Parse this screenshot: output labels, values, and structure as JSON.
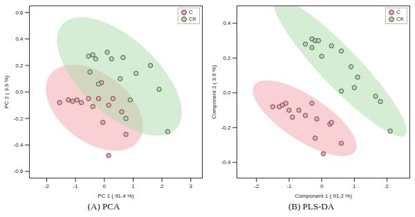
{
  "chart_data": [
    {
      "type": "scatter",
      "caption": "(A) PCA",
      "x_label": "PC 1 ( 91.4 %)",
      "y_label": "PC 2 ( 3.9 %)",
      "xlim": [
        -2.6,
        3.4
      ],
      "ylim": [
        -0.65,
        0.65
      ],
      "xticks": [
        -2,
        -1,
        0,
        1,
        2,
        3
      ],
      "yticks": [
        {
          "value": -0.6,
          "label": "-0.6"
        },
        {
          "value": -0.4,
          "label": "-0.4"
        },
        {
          "value": -0.2,
          "label": "-0.2"
        },
        {
          "value": 0,
          "label": "0.0"
        },
        {
          "value": 0.2,
          "label": "0.2"
        },
        {
          "value": 0.4,
          "label": "0.4"
        },
        {
          "value": 0.6,
          "label": "0.6"
        }
      ],
      "legend": "top-right",
      "grid": false,
      "series": [
        {
          "name": "C",
          "color": "#f4a3ab",
          "x": [
            -1.55,
            -1.25,
            -1.1,
            -0.95,
            -0.8,
            -0.55,
            -0.4,
            -0.2,
            -0.1,
            -0.05,
            0.15,
            0.3,
            0.6,
            0.75,
            0.15
          ],
          "y": [
            -0.08,
            -0.06,
            -0.07,
            -0.06,
            -0.08,
            -0.05,
            -0.11,
            -0.05,
            0.07,
            -0.23,
            -0.1,
            -0.05,
            -0.15,
            -0.32,
            -0.48
          ]
        },
        {
          "name": "CK",
          "color": "#a9dba9",
          "x": [
            -0.55,
            -0.4,
            -0.3,
            -0.2,
            -0.5,
            0.1,
            0.25,
            0.65,
            0.9,
            1.1,
            1.6,
            1.9,
            2.2,
            0.75,
            0.55
          ],
          "y": [
            0.27,
            0.28,
            0.25,
            0.06,
            0.15,
            0.3,
            0.25,
            0.26,
            -0.06,
            0.14,
            0.2,
            0.02,
            -0.3,
            -0.2,
            0.1
          ]
        }
      ]
    },
    {
      "type": "scatter",
      "caption": "(B) PLS-DA",
      "x_label": "Component 1 ( 91.2 %)",
      "y_label": "Component 2 ( 3.9 %)",
      "xlim": [
        -2.6,
        2.7
      ],
      "ylim": [
        -0.49,
        0.5
      ],
      "xticks": [
        -2,
        -1,
        0,
        1,
        2
      ],
      "yticks": [
        {
          "value": -0.4,
          "label": "-0.4"
        },
        {
          "value": -0.2,
          "label": "-0.2"
        },
        {
          "value": 0,
          "label": "0.0"
        },
        {
          "value": 0.2,
          "label": "0.2"
        },
        {
          "value": 0.4,
          "label": "0.4"
        }
      ],
      "legend": "top-right",
      "grid": false,
      "series": [
        {
          "name": "C",
          "color": "#f4a3ab",
          "x": [
            -1.5,
            -1.3,
            -1.2,
            -1.1,
            -1.0,
            -0.9,
            -0.7,
            -0.5,
            -0.3,
            -0.15,
            0.25,
            0.3,
            -0.2,
            0.05,
            0.6
          ],
          "y": [
            -0.08,
            -0.08,
            -0.07,
            -0.06,
            -0.1,
            -0.14,
            -0.1,
            -0.13,
            -0.06,
            -0.15,
            -0.18,
            -0.17,
            -0.26,
            -0.35,
            -0.29
          ]
        },
        {
          "name": "CK",
          "color": "#a9dba9",
          "x": [
            -0.5,
            -0.3,
            -0.2,
            -0.1,
            -0.3,
            0.0,
            0.3,
            0.6,
            0.9,
            1.1,
            1.0,
            0.6,
            1.65,
            1.8,
            2.1
          ],
          "y": [
            0.28,
            0.31,
            0.3,
            0.3,
            0.26,
            0.21,
            0.27,
            0.24,
            0.15,
            0.09,
            0.03,
            0.01,
            -0.02,
            -0.05,
            -0.22
          ]
        }
      ]
    }
  ]
}
